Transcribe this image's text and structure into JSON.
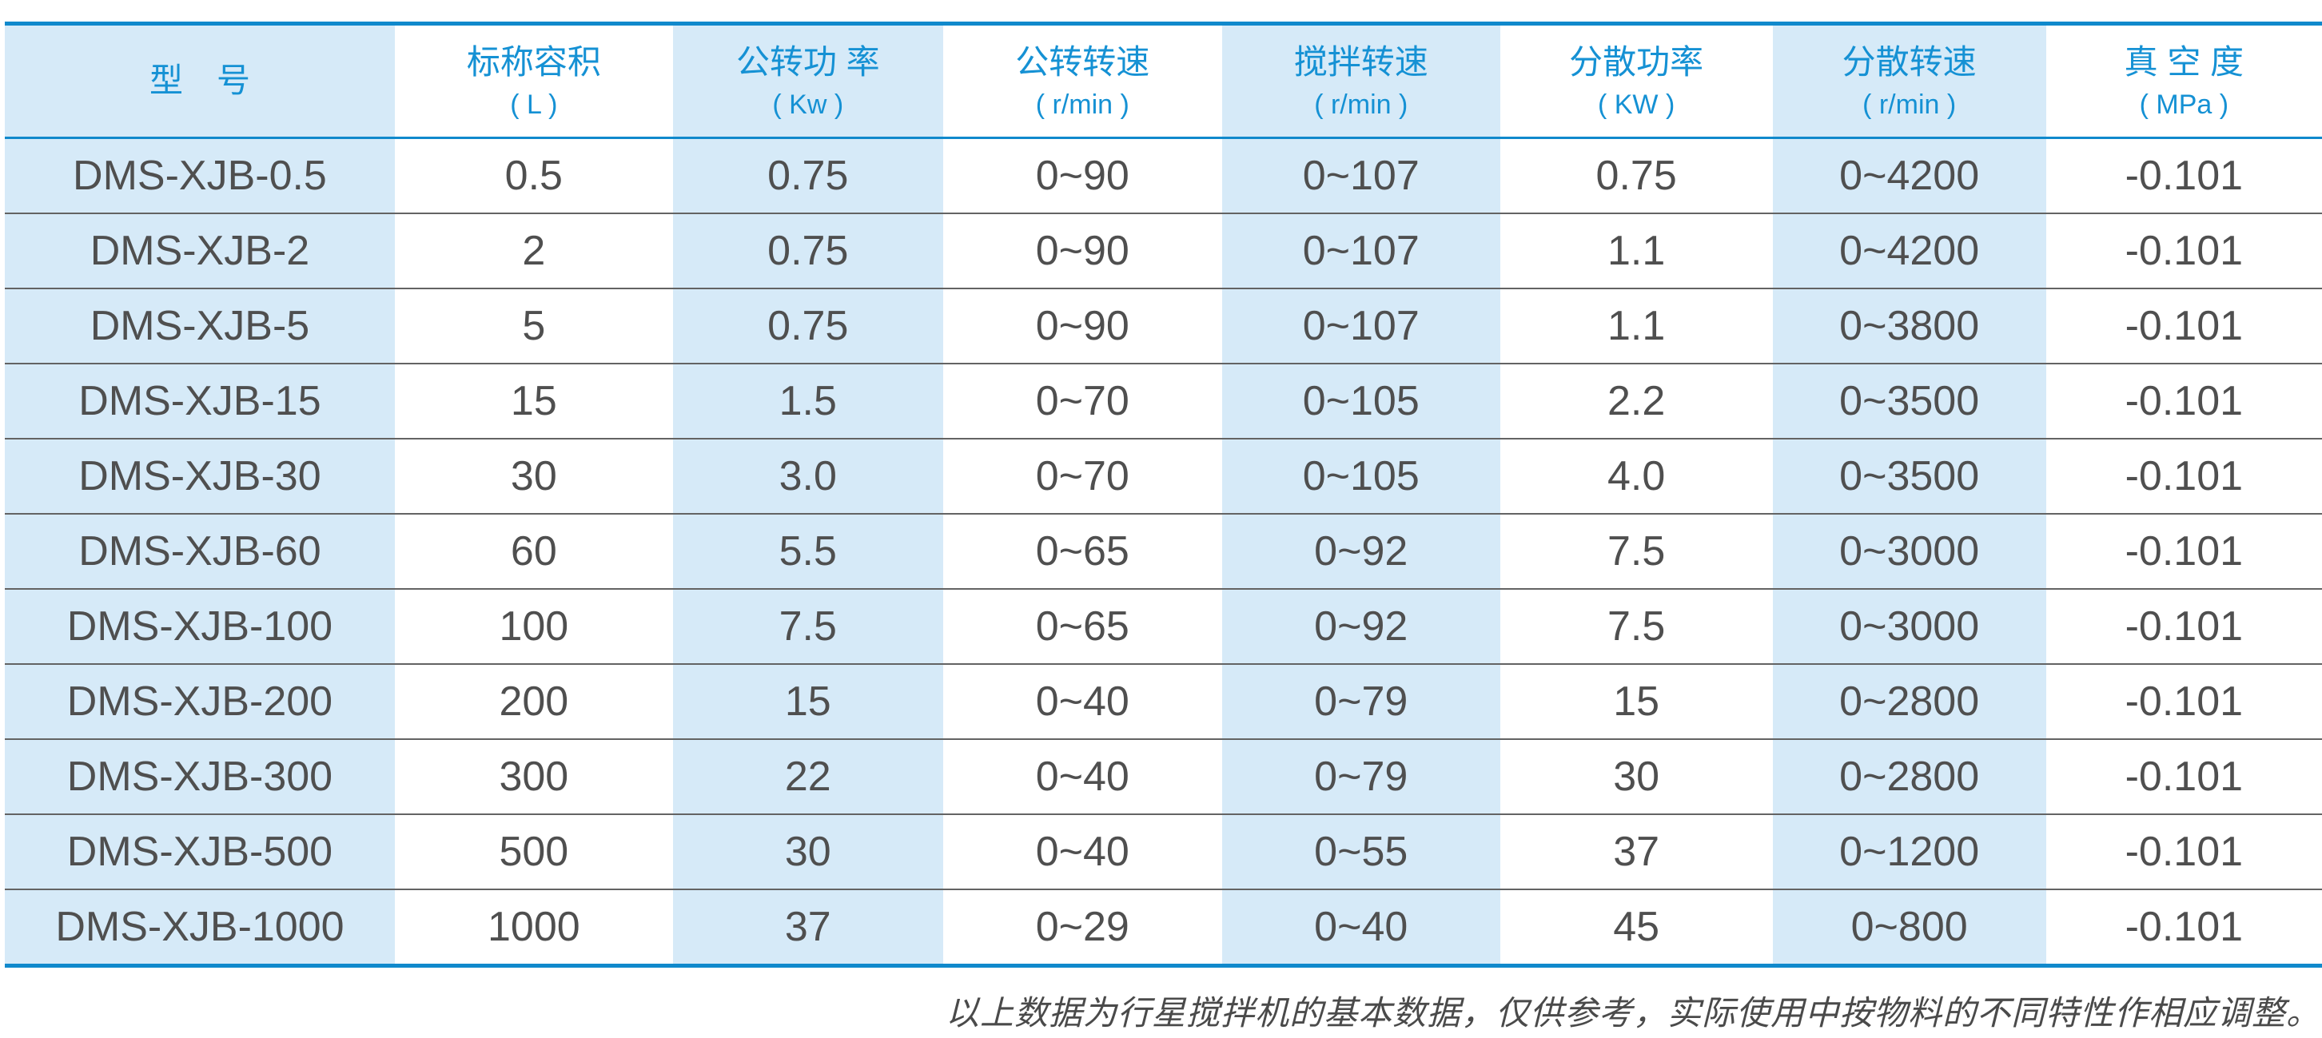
{
  "colors": {
    "accent_blue": "#1089cc",
    "header_text_blue": "#1591d4",
    "stripe_blue": "#d6eaf8",
    "body_text": "#4f4f4f",
    "row_divider": "#636363",
    "footnote_text": "#4a4a4a"
  },
  "table": {
    "columns": [
      {
        "label": "型　号",
        "unit": ""
      },
      {
        "label": "标称容积",
        "unit": "( L )"
      },
      {
        "label": "公转功 率",
        "unit": "( Kw )"
      },
      {
        "label": "公转转速",
        "unit": "( r/min )"
      },
      {
        "label": "搅拌转速",
        "unit": "( r/min )"
      },
      {
        "label": "分散功率",
        "unit": "( KW )"
      },
      {
        "label": "分散转速",
        "unit": "( r/min )"
      },
      {
        "label": "真 空 度",
        "unit": "( MPa )"
      }
    ],
    "rows": [
      [
        "DMS-XJB-0.5",
        "0.5",
        "0.75",
        "0~90",
        "0~107",
        "0.75",
        "0~4200",
        "-0.101"
      ],
      [
        "DMS-XJB-2",
        "2",
        "0.75",
        "0~90",
        "0~107",
        "1.1",
        "0~4200",
        "-0.101"
      ],
      [
        "DMS-XJB-5",
        "5",
        "0.75",
        "0~90",
        "0~107",
        "1.1",
        "0~3800",
        "-0.101"
      ],
      [
        "DMS-XJB-15",
        "15",
        "1.5",
        "0~70",
        "0~105",
        "2.2",
        "0~3500",
        "-0.101"
      ],
      [
        "DMS-XJB-30",
        "30",
        "3.0",
        "0~70",
        "0~105",
        "4.0",
        "0~3500",
        "-0.101"
      ],
      [
        "DMS-XJB-60",
        "60",
        "5.5",
        "0~65",
        "0~92",
        "7.5",
        "0~3000",
        "-0.101"
      ],
      [
        "DMS-XJB-100",
        "100",
        "7.5",
        "0~65",
        "0~92",
        "7.5",
        "0~3000",
        "-0.101"
      ],
      [
        "DMS-XJB-200",
        "200",
        "15",
        "0~40",
        "0~79",
        "15",
        "0~2800",
        "-0.101"
      ],
      [
        "DMS-XJB-300",
        "300",
        "22",
        "0~40",
        "0~79",
        "30",
        "0~2800",
        "-0.101"
      ],
      [
        "DMS-XJB-500",
        "500",
        "30",
        "0~40",
        "0~55",
        "37",
        "0~1200",
        "-0.101"
      ],
      [
        "DMS-XJB-1000",
        "1000",
        "37",
        "0~29",
        "0~40",
        "45",
        "0~800",
        "-0.101"
      ]
    ]
  },
  "footnote": "以上数据为行星搅拌机的基本数据，仅供参考，实际使用中按物料的不同特性作相应调整。"
}
